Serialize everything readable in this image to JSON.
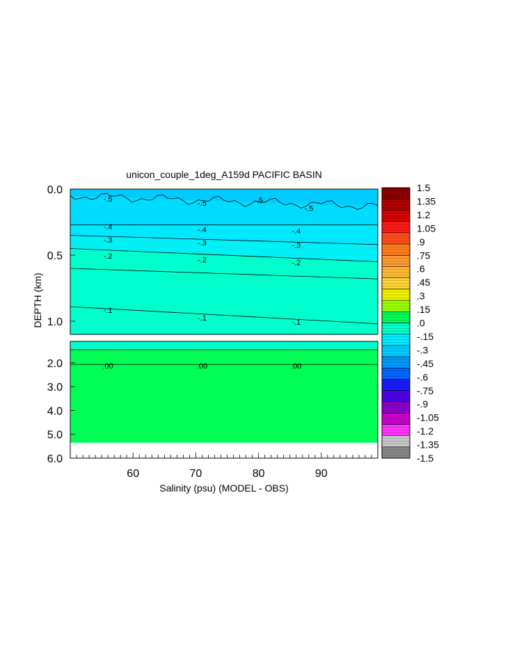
{
  "chart_data": {
    "type": "contour",
    "title": "unicon_couple_1deg_A159d PACIFIC BASIN",
    "xlabel": "Salinity (psu) (MODEL - OBS)",
    "ylabel": "DEPTH (km)",
    "xlim": [
      50,
      99
    ],
    "x_ticks": [
      "60",
      "70",
      "80",
      "90"
    ],
    "upper_panel": {
      "ylim": [
        0.0,
        1.1
      ],
      "y_ticks": [
        "0.0",
        "0.5",
        "1.0"
      ]
    },
    "lower_panel": {
      "ylim": [
        1.1,
        6.0
      ],
      "y_ticks": [
        "2.0",
        "3.0",
        "4.0",
        "5.0",
        "6.0"
      ]
    },
    "contours": [
      {
        "level": -0.5,
        "label": "-.5",
        "depth_left": 0.05,
        "depth_right": 0.13
      },
      {
        "level": -0.4,
        "label": "-.4",
        "depth_left": 0.27,
        "depth_right": 0.27
      },
      {
        "level": -0.3,
        "label": "-.3",
        "depth_left": 0.35,
        "depth_right": 0.42
      },
      {
        "level": -0.2,
        "label": "-.2",
        "depth_left": 0.45,
        "depth_right": 0.55
      },
      {
        "level": -0.1,
        "label": "-.1",
        "depth_left": 0.89,
        "depth_right": 1.02
      },
      {
        "level": 0.0,
        "label": ".00",
        "depth_left": 2.07,
        "depth_right": 2.07
      }
    ],
    "contour_labels": [
      {
        "text": "-.5",
        "x": 56,
        "depth": 0.08
      },
      {
        "text": "-.5",
        "x": 71,
        "depth": 0.11
      },
      {
        "text": "-.5",
        "x": 80,
        "depth": 0.09
      },
      {
        "text": "-.5",
        "x": 88,
        "depth": 0.15
      },
      {
        "text": "-.4",
        "x": 56,
        "depth": 0.29
      },
      {
        "text": "-.4",
        "x": 71,
        "depth": 0.31
      },
      {
        "text": "-.4",
        "x": 86,
        "depth": 0.32
      },
      {
        "text": "-.3",
        "x": 56,
        "depth": 0.39
      },
      {
        "text": "-.3",
        "x": 71,
        "depth": 0.41
      },
      {
        "text": "-.3",
        "x": 86,
        "depth": 0.43
      },
      {
        "text": "-.2",
        "x": 56,
        "depth": 0.51
      },
      {
        "text": "-.2",
        "x": 71,
        "depth": 0.54
      },
      {
        "text": "-.2",
        "x": 86,
        "depth": 0.56
      },
      {
        "text": "-.1",
        "x": 56,
        "depth": 0.92
      },
      {
        "text": "-.1",
        "x": 71,
        "depth": 0.98
      },
      {
        "text": "-.1",
        "x": 86,
        "depth": 1.01
      },
      {
        "text": ".00",
        "x": 56,
        "depth": 2.15
      },
      {
        "text": ".00",
        "x": 71,
        "depth": 2.15
      },
      {
        "text": ".00",
        "x": 86,
        "depth": 2.15
      }
    ],
    "colorbar": {
      "range": [
        -1.5,
        1.5
      ],
      "labels": [
        "1.5",
        "1.35",
        "1.2",
        "1.05",
        ".9",
        ".75",
        ".6",
        ".45",
        ".3",
        ".15",
        ".0",
        "-.15",
        "-.3",
        "-.45",
        "-.6",
        "-.75",
        "-.9",
        "-1.05",
        "-1.2",
        "-1.35",
        "-1.5"
      ],
      "colors": [
        "#8b0000",
        "#b00000",
        "#d80000",
        "#ff1a1a",
        "#ff4d1a",
        "#ff7f1a",
        "#ff9933",
        "#ffb833",
        "#ffd633",
        "#f0f000",
        "#99ff00",
        "#00ff55",
        "#00ffcc",
        "#00ebff",
        "#00ccff",
        "#0099ff",
        "#0066ff",
        "#1a1aff",
        "#4d00e6",
        "#8c00cc",
        "#cc00cc",
        "#ff33ff",
        "#c8c8c8",
        "#888888"
      ]
    }
  }
}
